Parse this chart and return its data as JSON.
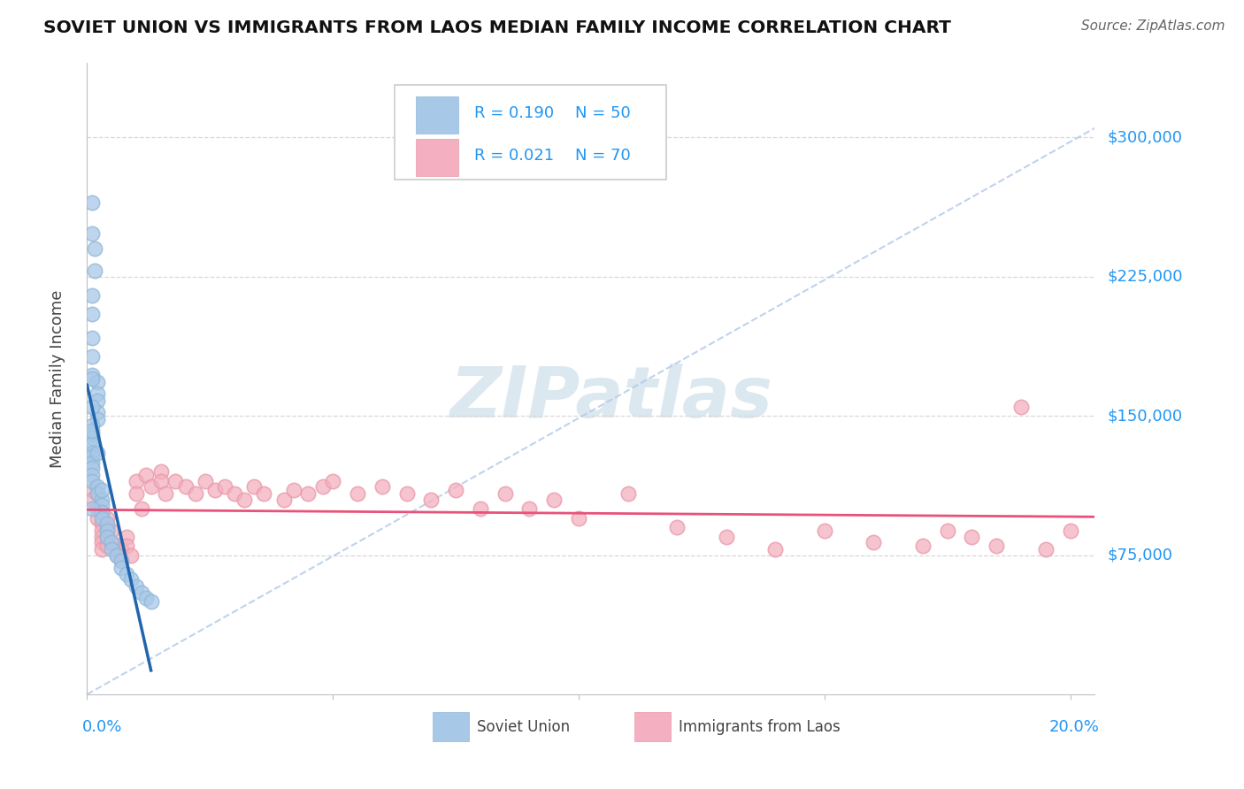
{
  "title": "SOVIET UNION VS IMMIGRANTS FROM LAOS MEDIAN FAMILY INCOME CORRELATION CHART",
  "source": "Source: ZipAtlas.com",
  "ylabel": "Median Family Income",
  "ytick_labels": [
    "$75,000",
    "$150,000",
    "$225,000",
    "$300,000"
  ],
  "ytick_values": [
    75000,
    150000,
    225000,
    300000
  ],
  "xlim": [
    0.0,
    0.205
  ],
  "ylim": [
    0,
    340000
  ],
  "blue_R": "R = 0.190",
  "blue_N": "N = 50",
  "pink_R": "R = 0.021",
  "pink_N": "N = 70",
  "blue_color": "#a8c8e8",
  "pink_color": "#f4b0c0",
  "blue_edge_color": "#90b8d8",
  "pink_edge_color": "#e898a8",
  "blue_line_color": "#2166ac",
  "pink_line_color": "#e8527a",
  "diag_color": "#b0c8e8",
  "watermark": "ZIPatlas",
  "watermark_color": "#dce8f0",
  "grid_color": "#d8d8d8",
  "soviet_x": [
    0.001,
    0.001,
    0.0015,
    0.0015,
    0.001,
    0.001,
    0.001,
    0.001,
    0.001,
    0.002,
    0.002,
    0.002,
    0.002,
    0.002,
    0.001,
    0.001,
    0.001,
    0.001,
    0.001,
    0.001,
    0.001,
    0.001,
    0.001,
    0.001,
    0.002,
    0.002,
    0.003,
    0.003,
    0.003,
    0.003,
    0.004,
    0.004,
    0.004,
    0.005,
    0.005,
    0.006,
    0.007,
    0.007,
    0.008,
    0.009,
    0.01,
    0.011,
    0.012,
    0.013,
    0.001,
    0.001,
    0.001,
    0.001,
    0.002,
    0.003
  ],
  "soviet_y": [
    265000,
    248000,
    240000,
    228000,
    215000,
    205000,
    192000,
    182000,
    172000,
    168000,
    162000,
    158000,
    152000,
    148000,
    145000,
    140000,
    138000,
    135000,
    130000,
    128000,
    125000,
    122000,
    118000,
    115000,
    112000,
    108000,
    105000,
    102000,
    98000,
    95000,
    92000,
    88000,
    85000,
    82000,
    78000,
    75000,
    72000,
    68000,
    65000,
    62000,
    58000,
    55000,
    52000,
    50000,
    100000,
    142000,
    155000,
    170000,
    130000,
    110000
  ],
  "laos_x": [
    0.001,
    0.001,
    0.002,
    0.002,
    0.002,
    0.003,
    0.003,
    0.003,
    0.003,
    0.003,
    0.003,
    0.004,
    0.004,
    0.004,
    0.004,
    0.005,
    0.005,
    0.006,
    0.006,
    0.007,
    0.007,
    0.008,
    0.008,
    0.009,
    0.01,
    0.01,
    0.011,
    0.012,
    0.013,
    0.015,
    0.015,
    0.016,
    0.018,
    0.02,
    0.022,
    0.024,
    0.026,
    0.028,
    0.03,
    0.032,
    0.034,
    0.036,
    0.04,
    0.042,
    0.045,
    0.048,
    0.05,
    0.055,
    0.06,
    0.065,
    0.07,
    0.075,
    0.08,
    0.085,
    0.09,
    0.095,
    0.1,
    0.11,
    0.12,
    0.13,
    0.14,
    0.15,
    0.16,
    0.17,
    0.175,
    0.18,
    0.185,
    0.19,
    0.195,
    0.2
  ],
  "laos_y": [
    110000,
    105000,
    108000,
    100000,
    95000,
    98000,
    92000,
    88000,
    85000,
    82000,
    78000,
    95000,
    90000,
    85000,
    80000,
    88000,
    82000,
    80000,
    75000,
    78000,
    72000,
    85000,
    80000,
    75000,
    115000,
    108000,
    100000,
    118000,
    112000,
    120000,
    115000,
    108000,
    115000,
    112000,
    108000,
    115000,
    110000,
    112000,
    108000,
    105000,
    112000,
    108000,
    105000,
    110000,
    108000,
    112000,
    115000,
    108000,
    112000,
    108000,
    105000,
    110000,
    100000,
    108000,
    100000,
    105000,
    95000,
    108000,
    90000,
    85000,
    78000,
    88000,
    82000,
    80000,
    88000,
    85000,
    80000,
    155000,
    78000,
    88000
  ]
}
